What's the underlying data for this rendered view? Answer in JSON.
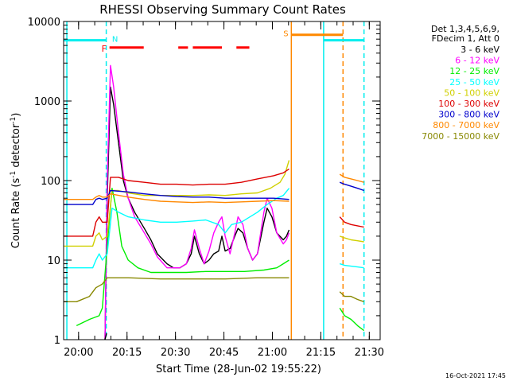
{
  "chart_data": {
    "type": "line",
    "title": "RHESSI Observing Summary Count Rates",
    "xlabel": "Start Time (28-Jun-02 19:55:22)",
    "ylabel_prefix": "Count Rate (s",
    "ylabel_exp": "-1",
    "ylabel_mid": " detector",
    "ylabel_suffix": ")",
    "y_scale": "log",
    "xlim": [
      0,
      98
    ],
    "ylim": [
      1,
      10000
    ],
    "x_unit": "minutes after 19:55:22",
    "x_ticks": [
      {
        "value": 4.63,
        "label": "20:00"
      },
      {
        "value": 19.63,
        "label": "20:15"
      },
      {
        "value": 34.63,
        "label": "20:30"
      },
      {
        "value": 49.63,
        "label": "20:45"
      },
      {
        "value": 64.63,
        "label": "21:00"
      },
      {
        "value": 79.63,
        "label": "21:15"
      },
      {
        "value": 94.63,
        "label": "21:30"
      }
    ],
    "y_ticks": [
      {
        "value": 1,
        "label": "1"
      },
      {
        "value": 10,
        "label": "10"
      },
      {
        "value": 100,
        "label": "100"
      },
      {
        "value": 1000,
        "label": "1000"
      },
      {
        "value": 10000,
        "label": "10000"
      }
    ],
    "legend": {
      "position": "right",
      "header": [
        "Det 1,3,4,5,6,9,",
        "FDecim 1, Att 0"
      ],
      "entries": [
        {
          "label": "3 - 6 keV",
          "color": "#000000"
        },
        {
          "label": "6 - 12 keV",
          "color": "#ff00ff"
        },
        {
          "label": "12 - 25 keV",
          "color": "#00ee00"
        },
        {
          "label": "25 - 50 keV",
          "color": "#00ffff"
        },
        {
          "label": "50 - 100 keV",
          "color": "#d0d000"
        },
        {
          "label": "100 - 300 keV",
          "color": "#dd0000"
        },
        {
          "label": "300 - 800 keV",
          "color": "#0000cc"
        },
        {
          "label": "800 - 7000 keV",
          "color": "#ff8800"
        },
        {
          "label": "7000 - 15000 keV",
          "color": "#888800"
        }
      ]
    },
    "series": [
      {
        "name": "3 - 6 keV",
        "color": "#000000",
        "points": [
          [
            12.8,
            1
          ],
          [
            13.5,
            60
          ],
          [
            14.5,
            1500
          ],
          [
            15.5,
            900
          ],
          [
            17,
            300
          ],
          [
            18.5,
            100
          ],
          [
            20,
            60
          ],
          [
            22,
            40
          ],
          [
            25,
            25
          ],
          [
            27,
            18
          ],
          [
            29,
            12
          ],
          [
            32,
            9
          ],
          [
            34,
            8
          ],
          [
            36,
            8
          ],
          [
            38,
            9
          ],
          [
            39.5,
            12
          ],
          [
            40.5,
            20
          ],
          [
            42,
            12
          ],
          [
            43.5,
            9
          ],
          [
            45,
            10
          ],
          [
            46.5,
            12
          ],
          [
            48,
            13
          ],
          [
            49,
            20
          ],
          [
            50,
            13
          ],
          [
            51.5,
            14
          ],
          [
            53,
            20
          ],
          [
            54,
            25
          ],
          [
            55.5,
            22
          ],
          [
            57,
            14
          ],
          [
            58.5,
            10
          ],
          [
            60,
            12
          ],
          [
            62,
            30
          ],
          [
            63,
            45
          ],
          [
            64.5,
            35
          ],
          [
            66,
            22
          ],
          [
            68,
            18
          ],
          [
            69,
            20
          ],
          [
            69.8,
            24
          ]
        ]
      },
      {
        "name": "6 - 12 keV",
        "color": "#ff00ff",
        "points": [
          [
            12.8,
            1
          ],
          [
            13.5,
            100
          ],
          [
            14.5,
            2800
          ],
          [
            15.5,
            1500
          ],
          [
            17,
            400
          ],
          [
            18.5,
            120
          ],
          [
            20,
            60
          ],
          [
            22,
            35
          ],
          [
            25,
            22
          ],
          [
            27,
            16
          ],
          [
            29,
            11
          ],
          [
            32,
            8
          ],
          [
            34,
            8
          ],
          [
            36,
            8
          ],
          [
            38,
            9
          ],
          [
            39.5,
            14
          ],
          [
            40.5,
            24
          ],
          [
            42,
            14
          ],
          [
            43.5,
            9
          ],
          [
            45,
            13
          ],
          [
            46.5,
            22
          ],
          [
            48,
            30
          ],
          [
            49,
            35
          ],
          [
            50,
            20
          ],
          [
            51.5,
            12
          ],
          [
            53,
            22
          ],
          [
            54,
            35
          ],
          [
            55.5,
            28
          ],
          [
            57,
            14
          ],
          [
            58.5,
            10
          ],
          [
            60,
            12
          ],
          [
            62,
            40
          ],
          [
            63,
            60
          ],
          [
            64.5,
            45
          ],
          [
            66,
            22
          ],
          [
            68,
            16
          ],
          [
            69,
            18
          ],
          [
            69.8,
            22
          ]
        ]
      },
      {
        "name": "12 - 25 keV",
        "color": "#00ee00",
        "points": [
          [
            4,
            1.5
          ],
          [
            8,
            1.8
          ],
          [
            11,
            2
          ],
          [
            12,
            2.5
          ],
          [
            13.5,
            15
          ],
          [
            15,
            80
          ],
          [
            16.5,
            40
          ],
          [
            18,
            15
          ],
          [
            20,
            10
          ],
          [
            23,
            8
          ],
          [
            27,
            7
          ],
          [
            32,
            7
          ],
          [
            38,
            7
          ],
          [
            44,
            7.2
          ],
          [
            50,
            7.2
          ],
          [
            56,
            7.2
          ],
          [
            62,
            7.5
          ],
          [
            66,
            8
          ],
          [
            68,
            9
          ],
          [
            69.8,
            10
          ]
        ]
      },
      {
        "name": "25 - 50 keV",
        "color": "#00ffff",
        "points": [
          [
            0,
            8
          ],
          [
            6,
            8
          ],
          [
            9,
            8
          ],
          [
            10,
            10
          ],
          [
            11,
            12
          ],
          [
            12,
            10
          ],
          [
            13.5,
            12
          ],
          [
            15,
            45
          ],
          [
            17,
            40
          ],
          [
            20,
            35
          ],
          [
            25,
            32
          ],
          [
            30,
            30
          ],
          [
            35,
            30
          ],
          [
            40,
            31
          ],
          [
            44,
            32
          ],
          [
            48,
            28
          ],
          [
            50,
            22
          ],
          [
            52,
            28
          ],
          [
            55,
            30
          ],
          [
            60,
            40
          ],
          [
            63,
            50
          ],
          [
            66,
            60
          ],
          [
            68,
            65
          ],
          [
            69.8,
            80
          ]
        ]
      },
      {
        "name": "50 - 100 keV",
        "color": "#d0d000",
        "points": [
          [
            0,
            15
          ],
          [
            6,
            15
          ],
          [
            9,
            15
          ],
          [
            10,
            20
          ],
          [
            11,
            22
          ],
          [
            12,
            18
          ],
          [
            13.5,
            20
          ],
          [
            15,
            75
          ],
          [
            17,
            75
          ],
          [
            20,
            70
          ],
          [
            25,
            65
          ],
          [
            30,
            65
          ],
          [
            35,
            65
          ],
          [
            40,
            65
          ],
          [
            45,
            66
          ],
          [
            50,
            65
          ],
          [
            55,
            68
          ],
          [
            60,
            70
          ],
          [
            64,
            80
          ],
          [
            67,
            95
          ],
          [
            68.5,
            120
          ],
          [
            69.8,
            180
          ]
        ]
      },
      {
        "name": "100 - 300 keV",
        "color": "#dd0000",
        "points": [
          [
            0,
            20
          ],
          [
            6,
            20
          ],
          [
            9,
            20
          ],
          [
            10,
            30
          ],
          [
            11,
            35
          ],
          [
            12,
            30
          ],
          [
            13.5,
            30
          ],
          [
            14.5,
            110
          ],
          [
            17,
            110
          ],
          [
            20,
            100
          ],
          [
            25,
            95
          ],
          [
            30,
            90
          ],
          [
            35,
            90
          ],
          [
            40,
            88
          ],
          [
            45,
            90
          ],
          [
            50,
            90
          ],
          [
            55,
            95
          ],
          [
            60,
            105
          ],
          [
            65,
            115
          ],
          [
            68,
            125
          ],
          [
            69.8,
            140
          ]
        ]
      },
      {
        "name": "300 - 800 keV",
        "color": "#0000cc",
        "points": [
          [
            0,
            50
          ],
          [
            6,
            50
          ],
          [
            9,
            50
          ],
          [
            10,
            58
          ],
          [
            11,
            60
          ],
          [
            12,
            58
          ],
          [
            13.5,
            60
          ],
          [
            14.5,
            75
          ],
          [
            20,
            72
          ],
          [
            25,
            68
          ],
          [
            30,
            65
          ],
          [
            35,
            63
          ],
          [
            40,
            62
          ],
          [
            45,
            62
          ],
          [
            50,
            60
          ],
          [
            55,
            60
          ],
          [
            60,
            60
          ],
          [
            65,
            60
          ],
          [
            69.8,
            58
          ]
        ]
      },
      {
        "name": "800 - 7000 keV",
        "color": "#ff8800",
        "points": [
          [
            0,
            58
          ],
          [
            6,
            58
          ],
          [
            9,
            58
          ],
          [
            10,
            62
          ],
          [
            11,
            65
          ],
          [
            12,
            62
          ],
          [
            13.5,
            62
          ],
          [
            14.5,
            68
          ],
          [
            20,
            62
          ],
          [
            25,
            58
          ],
          [
            30,
            55
          ],
          [
            35,
            54
          ],
          [
            40,
            53
          ],
          [
            45,
            54
          ],
          [
            50,
            53
          ],
          [
            55,
            54
          ],
          [
            60,
            55
          ],
          [
            65,
            56
          ],
          [
            69.8,
            55
          ]
        ]
      },
      {
        "name": "7000 - 15000 keV",
        "color": "#888800",
        "points": [
          [
            0,
            3
          ],
          [
            4,
            3
          ],
          [
            8,
            3.5
          ],
          [
            10,
            4.5
          ],
          [
            12,
            5
          ],
          [
            13.5,
            6
          ],
          [
            20,
            6
          ],
          [
            30,
            5.8
          ],
          [
            40,
            5.8
          ],
          [
            50,
            5.8
          ],
          [
            60,
            6
          ],
          [
            69.8,
            6
          ]
        ]
      },
      {
        "name": "3 - 6 keV",
        "color": "#000000",
        "points": [
          [
            12.8,
            1
          ],
          [
            13.3,
            1.2
          ]
        ]
      },
      {
        "name": "100 - 300 keV",
        "color": "#dd0000",
        "points": [
          [
            85.5,
            35
          ],
          [
            87,
            30
          ],
          [
            89,
            28
          ],
          [
            91,
            27
          ],
          [
            93,
            26
          ]
        ]
      },
      {
        "name": "800 - 7000 keV",
        "color": "#ff8800",
        "points": [
          [
            85.5,
            120
          ],
          [
            87,
            110
          ],
          [
            89,
            105
          ],
          [
            91,
            100
          ],
          [
            93,
            95
          ]
        ]
      },
      {
        "name": "300 - 800 keV",
        "color": "#0000cc",
        "points": [
          [
            85.5,
            95
          ],
          [
            87,
            90
          ],
          [
            89,
            85
          ],
          [
            91,
            80
          ],
          [
            93,
            75
          ]
        ]
      },
      {
        "name": "50 - 100 keV",
        "color": "#d0d000",
        "points": [
          [
            85.5,
            20
          ],
          [
            87,
            19
          ],
          [
            89,
            18
          ],
          [
            91,
            17.5
          ],
          [
            93,
            17
          ]
        ]
      },
      {
        "name": "25 - 50 keV",
        "color": "#00ffff",
        "points": [
          [
            85.5,
            9
          ],
          [
            87,
            8.6
          ],
          [
            89,
            8.4
          ],
          [
            91,
            8.2
          ],
          [
            93,
            8
          ]
        ]
      },
      {
        "name": "12 - 25 keV",
        "color": "#00ee00",
        "points": [
          [
            85.5,
            2.5
          ],
          [
            87,
            2
          ],
          [
            89,
            1.8
          ],
          [
            91,
            1.5
          ],
          [
            93,
            1.3
          ]
        ]
      },
      {
        "name": "7000 - 15000 keV",
        "color": "#888800",
        "points": [
          [
            85.5,
            4
          ],
          [
            87,
            3.5
          ],
          [
            89,
            3.5
          ],
          [
            91,
            3.2
          ],
          [
            93,
            3
          ]
        ]
      }
    ],
    "markers": {
      "flare_label": "F",
      "flare_color": "#ff0000",
      "flare_y": 4700,
      "flare_segments": [
        [
          14.2,
          24.8
        ],
        [
          35.5,
          38.5
        ],
        [
          40,
          49
        ],
        [
          53.5,
          57.5
        ]
      ],
      "night_label": "N",
      "saa_label": "S",
      "cyan_color": "#00eeee",
      "orange_color": "#ff8800",
      "night_top_y": 5800,
      "night_top_segments": [
        [
          0,
          13.2
        ],
        [
          80.5,
          93
        ]
      ],
      "saa_top_y": 6800,
      "saa_top_segments": [
        [
          70.5,
          86.5
        ]
      ],
      "cyan_vertical_solid": [
        1.0,
        80.5
      ],
      "cyan_vertical_dashed": [
        13.2,
        93.0
      ],
      "orange_vertical_solid": [
        70.5
      ],
      "orange_vertical_dashed": [
        86.5
      ],
      "night_label_x": 14.0,
      "saa_label_x": 68.5
    },
    "timestamp": "16-Oct-2021 17:45"
  }
}
